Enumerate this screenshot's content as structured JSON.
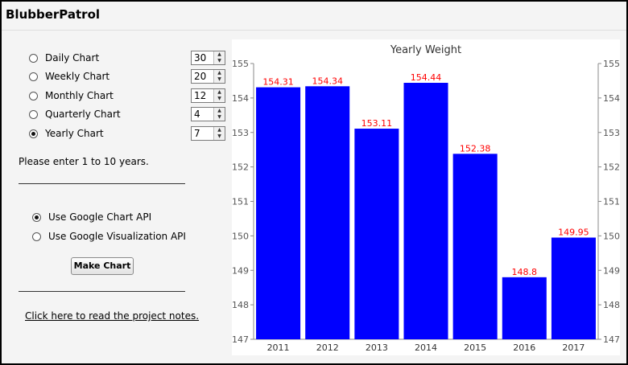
{
  "app": {
    "title": "BlubberPatrol"
  },
  "chart_types": [
    {
      "label": "Daily Chart",
      "value": "30",
      "checked": false
    },
    {
      "label": "Weekly Chart",
      "value": "20",
      "checked": false
    },
    {
      "label": "Monthly Chart",
      "value": "12",
      "checked": false
    },
    {
      "label": "Quarterly Chart",
      "value": "4",
      "checked": false
    },
    {
      "label": "Yearly Chart",
      "value": "7",
      "checked": true
    }
  ],
  "hint": "Please enter 1 to 10 years.",
  "api_options": [
    {
      "label": "Use Google Chart API",
      "checked": true
    },
    {
      "label": "Use Google Visualization API",
      "checked": false
    }
  ],
  "make_chart_label": "Make Chart",
  "notes_link": "Click here to read the project notes.",
  "colors": {
    "bar": "#0000ff",
    "value_label": "#ff0000"
  },
  "chart_data": {
    "type": "bar",
    "title": "Yearly Weight",
    "categories": [
      "2011",
      "2012",
      "2013",
      "2014",
      "2015",
      "2016",
      "2017"
    ],
    "values": [
      154.31,
      154.34,
      153.11,
      154.44,
      152.38,
      148.8,
      149.95
    ],
    "value_labels": [
      "154.31",
      "154.34",
      "153.11",
      "154.44",
      "152.38",
      "148.8",
      "149.95"
    ],
    "yticks": [
      147,
      148,
      149,
      150,
      151,
      152,
      153,
      154,
      155
    ],
    "ylim": [
      147,
      155
    ],
    "xlabel": "",
    "ylabel": "",
    "grid": false,
    "axes": "left-and-right"
  }
}
